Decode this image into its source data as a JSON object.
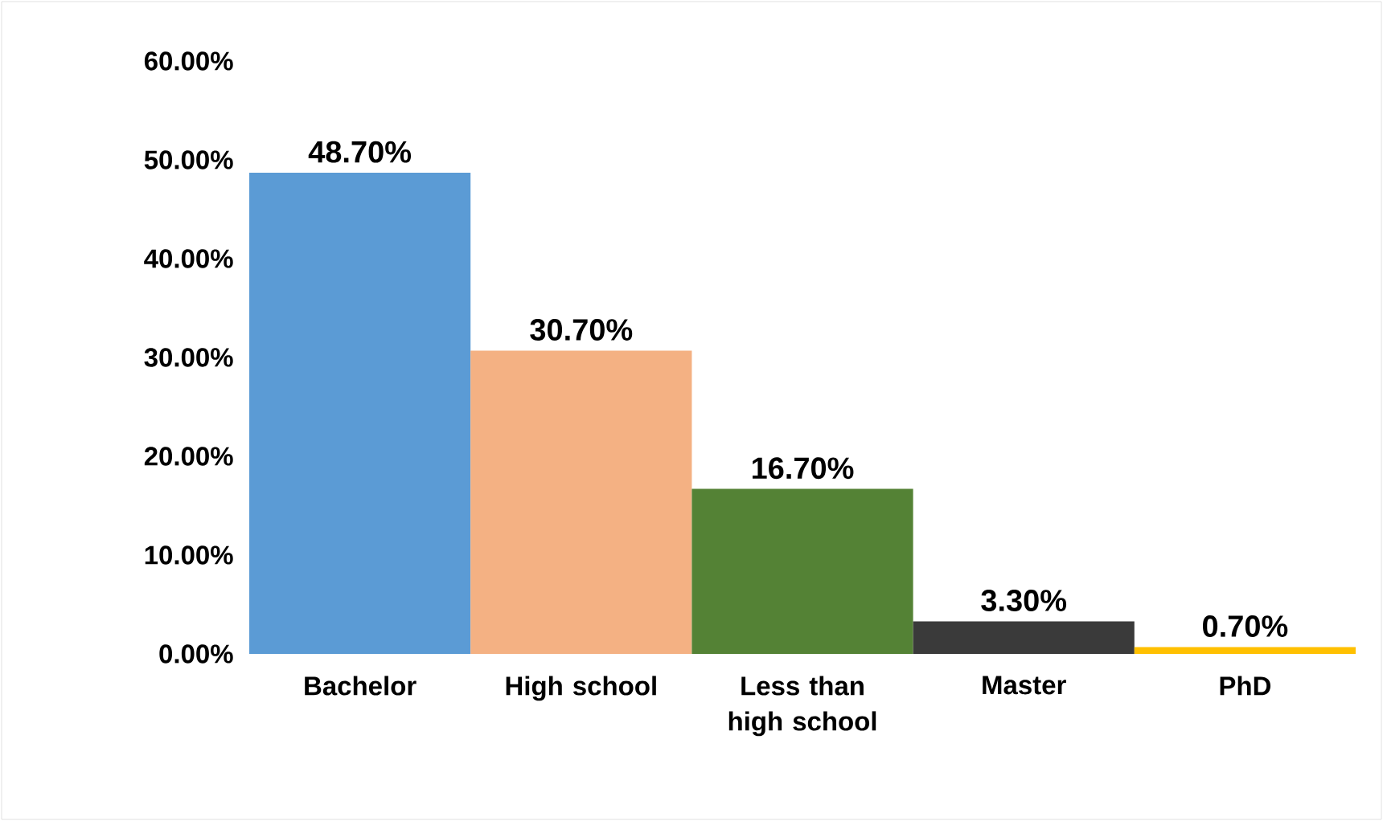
{
  "chart_data": {
    "type": "bar",
    "categories": [
      "Bachelor",
      "High school",
      "Less than high school",
      "Master",
      "PhD"
    ],
    "values": [
      48.7,
      30.7,
      16.7,
      3.3,
      0.7
    ],
    "value_labels": [
      "48.70%",
      "30.70%",
      "16.70%",
      "3.30%",
      "0.70%"
    ],
    "colors": [
      "#5b9bd5",
      "#f4b183",
      "#548235",
      "#3a3a3a",
      "#ffc000"
    ],
    "ylim": [
      0,
      60
    ],
    "yticks": [
      {
        "value": 0,
        "label": "0.00%"
      },
      {
        "value": 10,
        "label": "10.00%"
      },
      {
        "value": 20,
        "label": "20.00%"
      },
      {
        "value": 30,
        "label": "30.00%"
      },
      {
        "value": 40,
        "label": "40.00%"
      },
      {
        "value": 50,
        "label": "50.00%"
      },
      {
        "value": 60,
        "label": "60.00%"
      }
    ]
  }
}
